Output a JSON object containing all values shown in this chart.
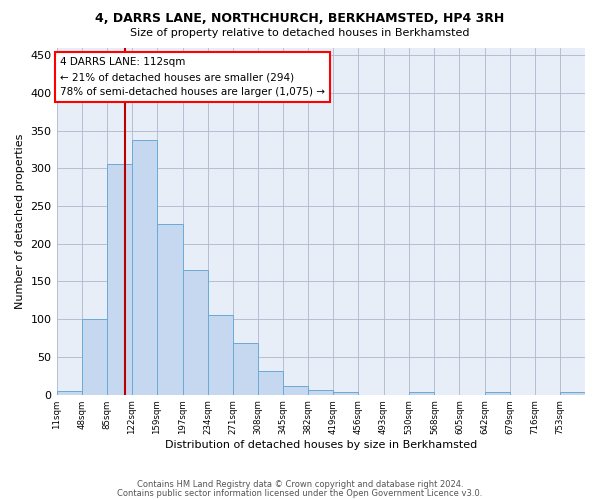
{
  "title1": "4, DARRS LANE, NORTHCHURCH, BERKHAMSTED, HP4 3RH",
  "title2": "Size of property relative to detached houses in Berkhamsted",
  "xlabel": "Distribution of detached houses by size in Berkhamsted",
  "ylabel": "Number of detached properties",
  "bar_color": "#c5d8f0",
  "bar_edge_color": "#6aaad4",
  "background_color": "#ffffff",
  "plot_bg_color": "#e8eef8",
  "grid_color": "#b0b8cc",
  "annotation_text": "4 DARRS LANE: 112sqm\n← 21% of detached houses are smaller (294)\n78% of semi-detached houses are larger (1,075) →",
  "property_line_x": 112,
  "property_line_color": "#bb0000",
  "bin_edges": [
    11,
    48,
    85,
    122,
    159,
    197,
    234,
    271,
    308,
    345,
    382,
    419,
    456,
    493,
    530,
    568,
    605,
    642,
    679,
    716,
    753,
    790
  ],
  "bin_labels": [
    "11sqm",
    "48sqm",
    "85sqm",
    "122sqm",
    "159sqm",
    "197sqm",
    "234sqm",
    "271sqm",
    "308sqm",
    "345sqm",
    "382sqm",
    "419sqm",
    "456sqm",
    "493sqm",
    "530sqm",
    "568sqm",
    "605sqm",
    "642sqm",
    "679sqm",
    "716sqm",
    "753sqm"
  ],
  "heights": [
    5,
    100,
    305,
    338,
    226,
    165,
    105,
    68,
    32,
    12,
    6,
    4,
    0,
    0,
    3,
    0,
    0,
    4,
    0,
    0,
    4
  ],
  "ylim": [
    0,
    460
  ],
  "yticks": [
    0,
    50,
    100,
    150,
    200,
    250,
    300,
    350,
    400,
    450
  ],
  "footer1": "Contains HM Land Registry data © Crown copyright and database right 2024.",
  "footer2": "Contains public sector information licensed under the Open Government Licence v3.0."
}
